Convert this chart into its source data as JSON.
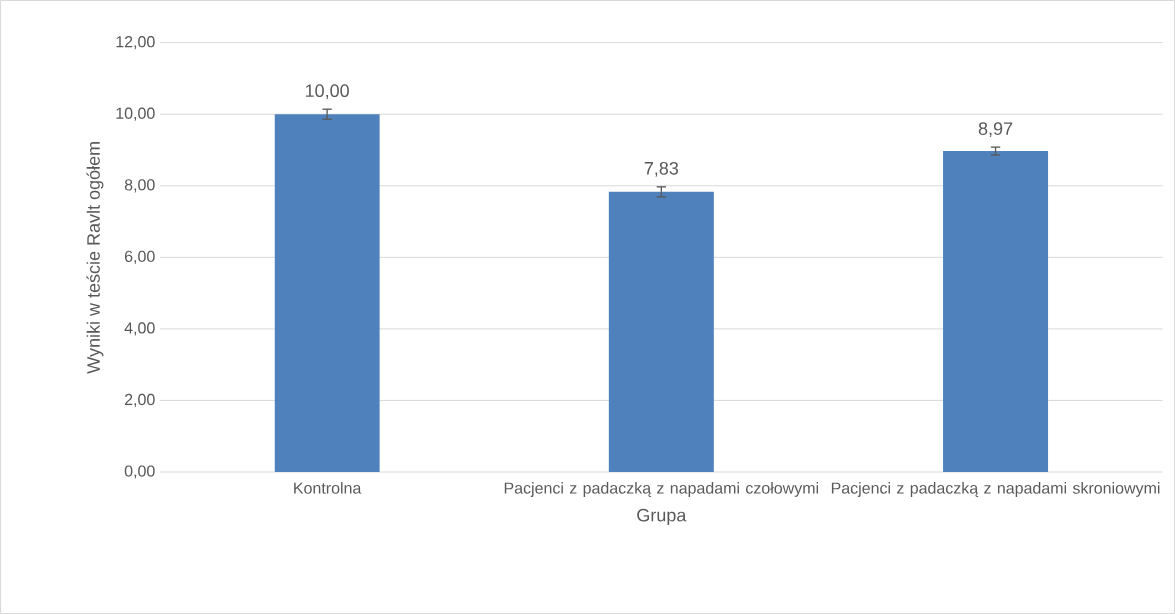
{
  "chart_data": {
    "type": "bar",
    "xlabel": "Grupa",
    "ylabel": "Wyniki w teście Ravlt ogółem",
    "categories": [
      "Kontrolna",
      "Pacjenci z padaczką z napadami czołowymi",
      "Pacjenci z padaczką z napadami skroniowymi"
    ],
    "values": [
      10.0,
      7.83,
      8.97
    ],
    "errors": [
      0.14,
      0.14,
      0.11
    ],
    "value_labels": [
      "10,00",
      "7,83",
      "8,97"
    ],
    "color": "#4f81bd",
    "ylim": [
      0,
      12
    ],
    "yticks": [
      {
        "value": 0,
        "label": "0,00"
      },
      {
        "value": 2,
        "label": "2,00"
      },
      {
        "value": 4,
        "label": "4,00"
      },
      {
        "value": 6,
        "label": "6,00"
      },
      {
        "value": 8,
        "label": "8,00"
      },
      {
        "value": 10,
        "label": "10,00"
      },
      {
        "value": 12,
        "label": "12,00"
      }
    ],
    "grid": "y"
  }
}
